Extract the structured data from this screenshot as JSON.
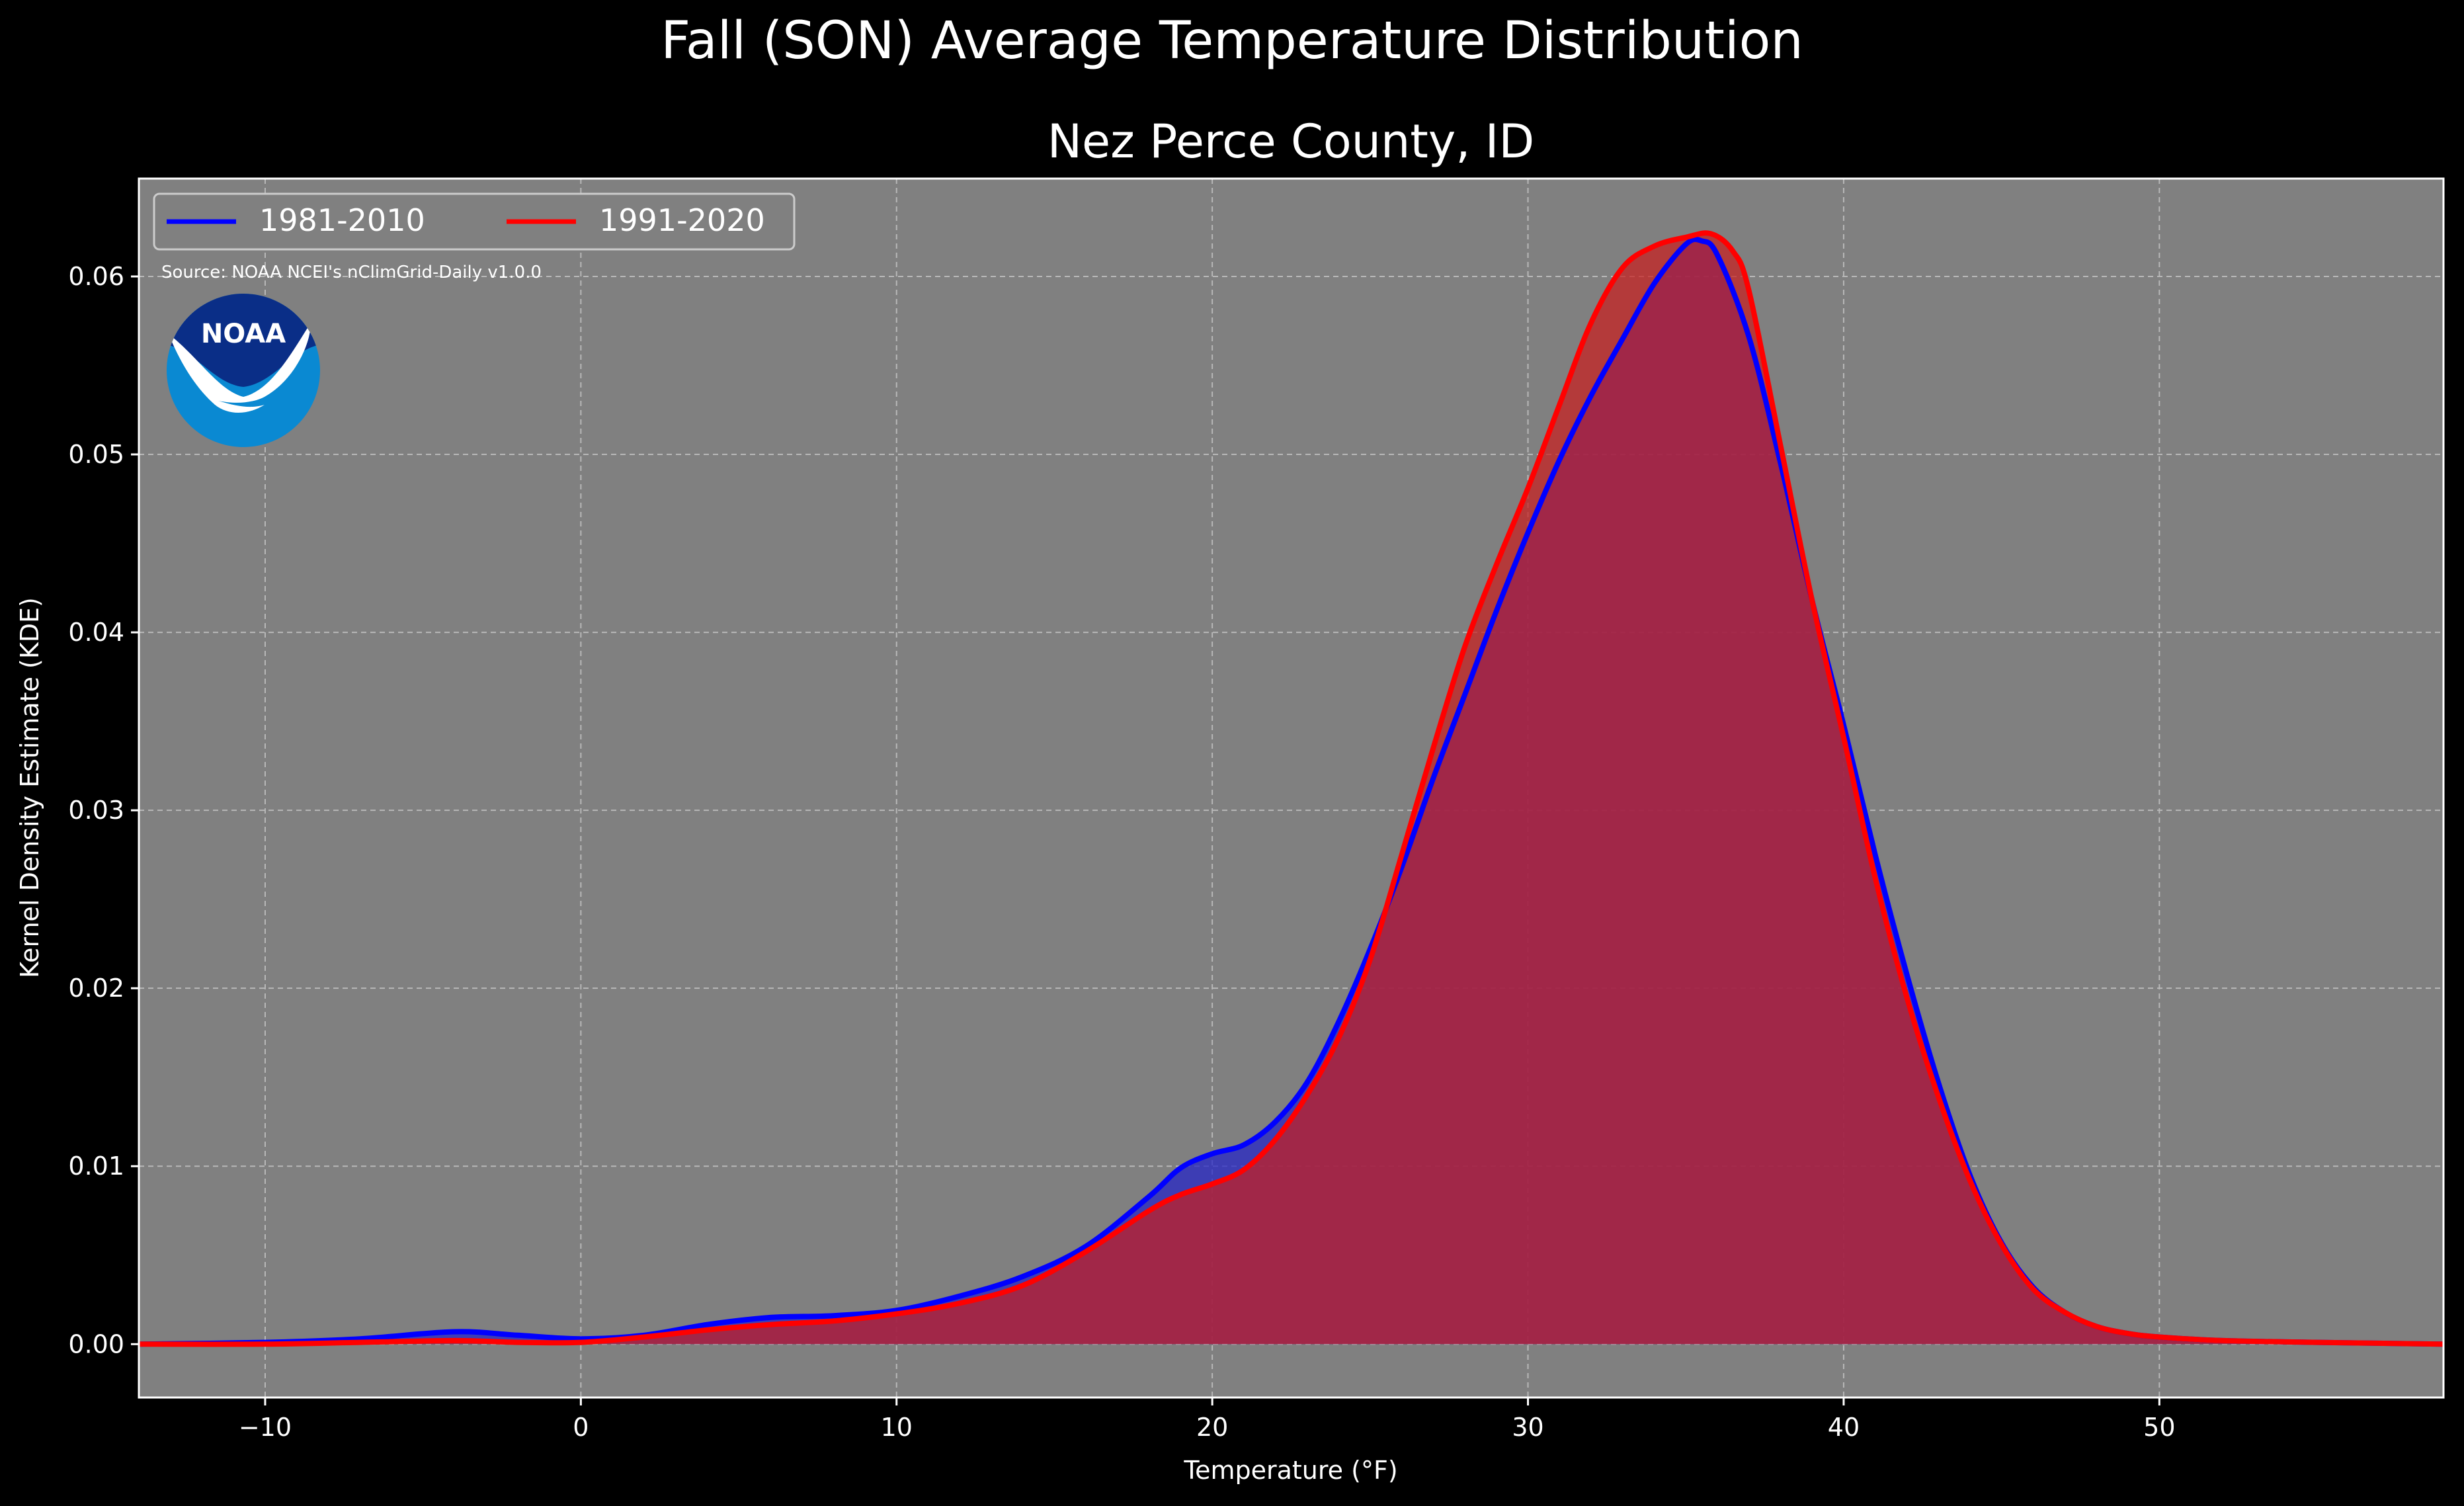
{
  "chart_data": {
    "type": "area",
    "title": "Fall (SON) Average Temperature Distribution",
    "subtitle": "Nez Perce County, ID",
    "xlabel": "Temperature (°F)",
    "ylabel": "Kernel Density Estimate (KDE)",
    "xlim": [
      -14,
      59
    ],
    "ylim": [
      -0.003,
      0.0655
    ],
    "xticks": [
      -10,
      0,
      10,
      20,
      30,
      40,
      50
    ],
    "yticks": [
      0.0,
      0.01,
      0.02,
      0.03,
      0.04,
      0.05,
      0.06
    ],
    "xtick_labels": [
      "−10",
      "0",
      "10",
      "20",
      "30",
      "40",
      "50"
    ],
    "ytick_labels": [
      "0.00",
      "0.01",
      "0.02",
      "0.03",
      "0.04",
      "0.05",
      "0.06"
    ],
    "grid": true,
    "legend_position": "top-left",
    "source_note": "Source: NOAA NCEI's nClimGrid-Daily v1.0.0",
    "logo_text": "NOAA",
    "colors": {
      "background": "#000000",
      "plot_background": "#808080",
      "series_1981": "#0000ff",
      "series_1991": "#ff0000"
    },
    "series": [
      {
        "name": "1981-2010",
        "color": "#0000ff",
        "fill": "#2323c8",
        "x": [
          -14,
          -10,
          -7,
          -4,
          -2,
          0,
          2,
          4,
          6,
          8,
          10,
          12,
          14,
          16,
          18,
          19,
          20,
          21,
          22,
          23,
          24,
          25,
          26,
          27,
          28,
          29,
          30,
          31,
          32,
          33,
          34,
          35,
          35.5,
          36,
          37,
          38,
          39,
          40,
          41,
          42,
          43,
          44,
          45,
          46,
          47,
          48,
          49,
          50,
          52,
          55,
          59
        ],
        "values": [
          0.0,
          0.0001,
          0.0003,
          0.0007,
          0.0005,
          0.0003,
          0.0005,
          0.0011,
          0.0015,
          0.0016,
          0.0019,
          0.0027,
          0.0038,
          0.0055,
          0.0083,
          0.0099,
          0.0107,
          0.0112,
          0.0125,
          0.0147,
          0.0181,
          0.0222,
          0.0268,
          0.0318,
          0.0365,
          0.0412,
          0.0456,
          0.0497,
          0.0533,
          0.0565,
          0.0596,
          0.0618,
          0.062,
          0.0612,
          0.0566,
          0.0495,
          0.0418,
          0.0348,
          0.0275,
          0.0208,
          0.0147,
          0.0095,
          0.0057,
          0.0032,
          0.0018,
          0.001,
          0.0006,
          0.0004,
          0.0002,
          0.0001,
          0.0
        ]
      },
      {
        "name": "1991-2020",
        "color": "#ff0000",
        "fill": "#c81e1e",
        "x": [
          -14,
          -10,
          -7,
          -4,
          -2,
          0,
          2,
          4,
          6,
          8,
          10,
          12,
          14,
          16,
          18,
          19,
          20,
          21,
          22,
          23,
          24,
          25,
          26,
          27,
          28,
          29,
          30,
          31,
          32,
          33,
          34,
          35,
          35.8,
          36.5,
          37,
          38,
          39,
          40,
          41,
          42,
          43,
          44,
          45,
          46,
          47,
          48,
          49,
          50,
          52,
          55,
          59
        ],
        "values": [
          0.0,
          0.0,
          0.0001,
          0.0002,
          0.0001,
          0.0001,
          0.0004,
          0.0008,
          0.0011,
          0.0013,
          0.0017,
          0.0023,
          0.0033,
          0.0052,
          0.0075,
          0.0084,
          0.009,
          0.0098,
          0.0115,
          0.014,
          0.0172,
          0.0216,
          0.0275,
          0.0335,
          0.0392,
          0.0438,
          0.0481,
          0.0528,
          0.0574,
          0.0605,
          0.0617,
          0.0622,
          0.0624,
          0.0614,
          0.0592,
          0.0505,
          0.0418,
          0.0341,
          0.0262,
          0.0195,
          0.0139,
          0.0092,
          0.0056,
          0.0031,
          0.0018,
          0.001,
          0.0006,
          0.0004,
          0.0002,
          0.0001,
          0.0
        ]
      }
    ]
  }
}
